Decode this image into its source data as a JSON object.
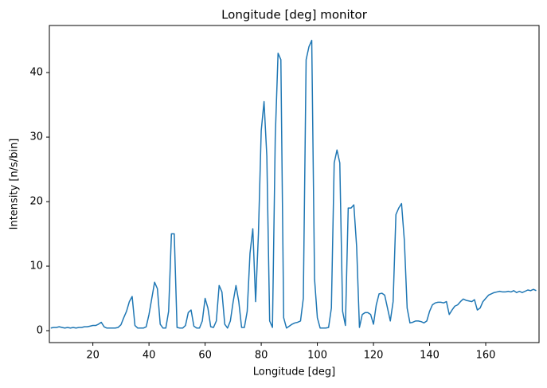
{
  "chart_data": {
    "type": "line",
    "title": "Longitude [deg] monitor",
    "xlabel": "Longitude [deg]",
    "ylabel": "Intensity [n/s/bin]",
    "x": [
      5,
      6,
      7,
      8,
      9,
      10,
      11,
      12,
      13,
      14,
      15,
      16,
      17,
      18,
      19,
      20,
      21,
      22,
      23,
      24,
      25,
      26,
      27,
      28,
      29,
      30,
      31,
      32,
      33,
      34,
      35,
      36,
      37,
      38,
      39,
      40,
      41,
      42,
      43,
      44,
      45,
      46,
      47,
      48,
      49,
      50,
      51,
      52,
      53,
      54,
      55,
      56,
      57,
      58,
      59,
      60,
      61,
      62,
      63,
      64,
      65,
      66,
      67,
      68,
      69,
      70,
      71,
      72,
      73,
      74,
      75,
      76,
      77,
      78,
      79,
      80,
      81,
      82,
      83,
      84,
      85,
      86,
      87,
      88,
      89,
      90,
      91,
      92,
      93,
      94,
      95,
      96,
      97,
      98,
      99,
      100,
      101,
      102,
      103,
      104,
      105,
      106,
      107,
      108,
      109,
      110,
      111,
      112,
      113,
      114,
      115,
      116,
      117,
      118,
      119,
      120,
      121,
      122,
      123,
      124,
      125,
      126,
      127,
      128,
      129,
      130,
      131,
      132,
      133,
      134,
      135,
      136,
      137,
      138,
      139,
      140,
      141,
      142,
      143,
      144,
      145,
      146,
      147,
      148,
      149,
      150,
      151,
      152,
      153,
      154,
      155,
      156,
      157,
      158,
      159,
      160,
      161,
      162,
      163,
      164,
      165,
      166,
      167,
      168,
      169,
      170,
      171,
      172,
      173,
      174,
      175,
      176,
      177,
      178
    ],
    "series": [
      {
        "name": "Longitude",
        "color": "#1f77b4",
        "values": [
          0.4,
          0.5,
          0.5,
          0.6,
          0.5,
          0.4,
          0.5,
          0.4,
          0.5,
          0.4,
          0.5,
          0.5,
          0.6,
          0.6,
          0.7,
          0.8,
          0.8,
          1.0,
          1.3,
          0.6,
          0.4,
          0.4,
          0.4,
          0.4,
          0.5,
          0.9,
          2.0,
          3.0,
          4.5,
          5.3,
          0.8,
          0.4,
          0.4,
          0.4,
          0.6,
          2.5,
          5.0,
          7.5,
          6.5,
          1.0,
          0.4,
          0.4,
          3.0,
          15,
          15,
          0.5,
          0.4,
          0.4,
          0.8,
          2.8,
          3.2,
          0.7,
          0.4,
          0.4,
          1.5,
          5.0,
          3.5,
          0.6,
          0.5,
          1.5,
          7.0,
          6.0,
          1.0,
          0.4,
          1.5,
          4.5,
          7.0,
          4.5,
          0.5,
          0.5,
          3.0,
          12,
          15.8,
          4.5,
          15,
          31,
          35.5,
          27,
          1.5,
          0.5,
          30,
          43,
          42,
          2,
          0.4,
          0.7,
          1.0,
          1.2,
          1.3,
          1.5,
          5,
          42,
          44,
          45,
          8,
          2,
          0.4,
          0.4,
          0.4,
          0.5,
          3.5,
          26,
          28,
          26,
          3,
          0.8,
          19,
          19,
          19.5,
          13,
          0.5,
          2.5,
          2.8,
          2.8,
          2.5,
          1.0,
          4.0,
          5.7,
          5.8,
          5.5,
          3.5,
          1.5,
          4.5,
          18,
          19,
          19.7,
          14,
          3.5,
          1.2,
          1.3,
          1.5,
          1.5,
          1.4,
          1.2,
          1.5,
          3.0,
          4.0,
          4.3,
          4.4,
          4.4,
          4.3,
          4.5,
          2.5,
          3.2,
          3.8,
          4.0,
          4.5,
          4.9,
          4.7,
          4.6,
          4.5,
          4.8,
          3.2,
          3.5,
          4.5,
          5.0,
          5.5,
          5.7,
          5.9,
          6.0,
          6.1,
          6.0,
          6.0,
          6.1,
          6.0,
          6.2,
          5.9,
          6.1,
          5.9,
          6.1,
          6.3,
          6.2,
          6.4,
          6.2
        ]
      }
    ],
    "xlim": [
      4.5,
      179
    ],
    "ylim": [
      -1.85,
      47.3
    ],
    "xticks": [
      20,
      40,
      60,
      80,
      100,
      120,
      140,
      160
    ],
    "yticks": [
      0,
      10,
      20,
      30,
      40
    ]
  }
}
